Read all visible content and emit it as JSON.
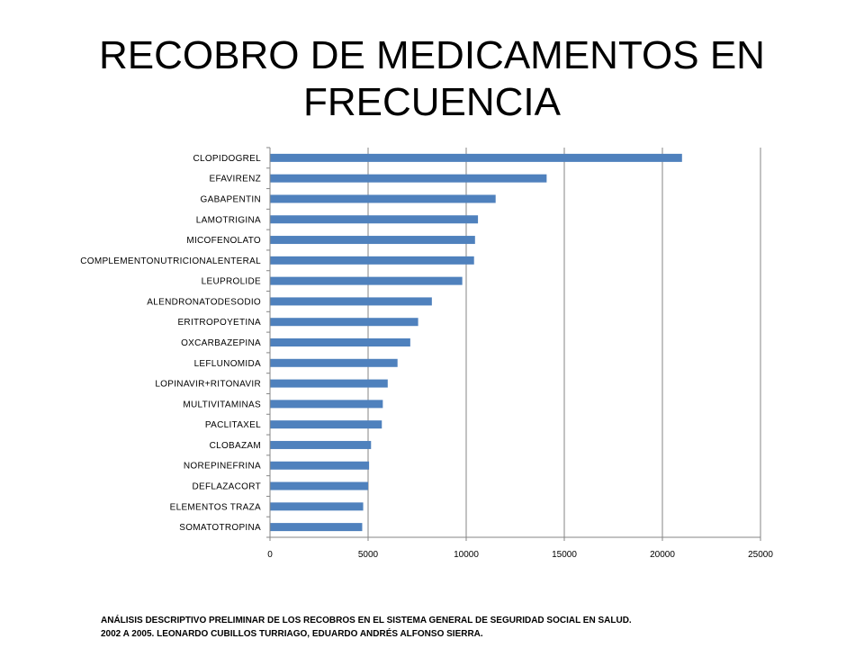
{
  "slide": {
    "title": "RECOBRO DE MEDICAMENTOS EN FRECUENCIA",
    "footer_line1": "ANÁLISIS DESCRIPTIVO PRELIMINAR DE LOS RECOBROS EN EL SISTEMA GENERAL DE SEGURIDAD SOCIAL EN SALUD.",
    "footer_line2": "2002 A 2005. LEONARDO CUBILLOS TURRIAGO, EDUARDO ANDRÉS ALFONSO SIERRA."
  },
  "chart_data": {
    "type": "bar",
    "orientation": "horizontal",
    "title": "",
    "xlabel": "",
    "ylabel": "",
    "xlim": [
      0,
      25000
    ],
    "xticks": [
      0,
      5000,
      10000,
      15000,
      20000,
      25000
    ],
    "grid": true,
    "legend": "none",
    "bar_color": "#4F81BD",
    "categories": [
      "CLOPIDOGREL",
      "EFAVIRENZ",
      "GABAPENTIN",
      "LAMOTRIGINA",
      "MICOFENOLATO",
      "COMPLEMENTONUTRICIONALENTERAL",
      "LEUPROLIDE",
      "ALENDRONATODESODIO",
      "ERITROPOYETINA",
      "OXCARBAZEPINA",
      "LEFLUNOMIDA",
      "LOPINAVIR+RITONAVIR",
      "MULTIVITAMINAS",
      "PACLITAXEL",
      "CLOBAZAM",
      "NOREPINEFRINA",
      "DEFLAZACORT",
      "ELEMENTOS TRAZA",
      "SOMATOTROPINA"
    ],
    "values": [
      21000,
      14100,
      11500,
      10600,
      10450,
      10400,
      9800,
      8250,
      7550,
      7150,
      6500,
      6000,
      5750,
      5700,
      5150,
      5050,
      5000,
      4750,
      4700
    ]
  }
}
